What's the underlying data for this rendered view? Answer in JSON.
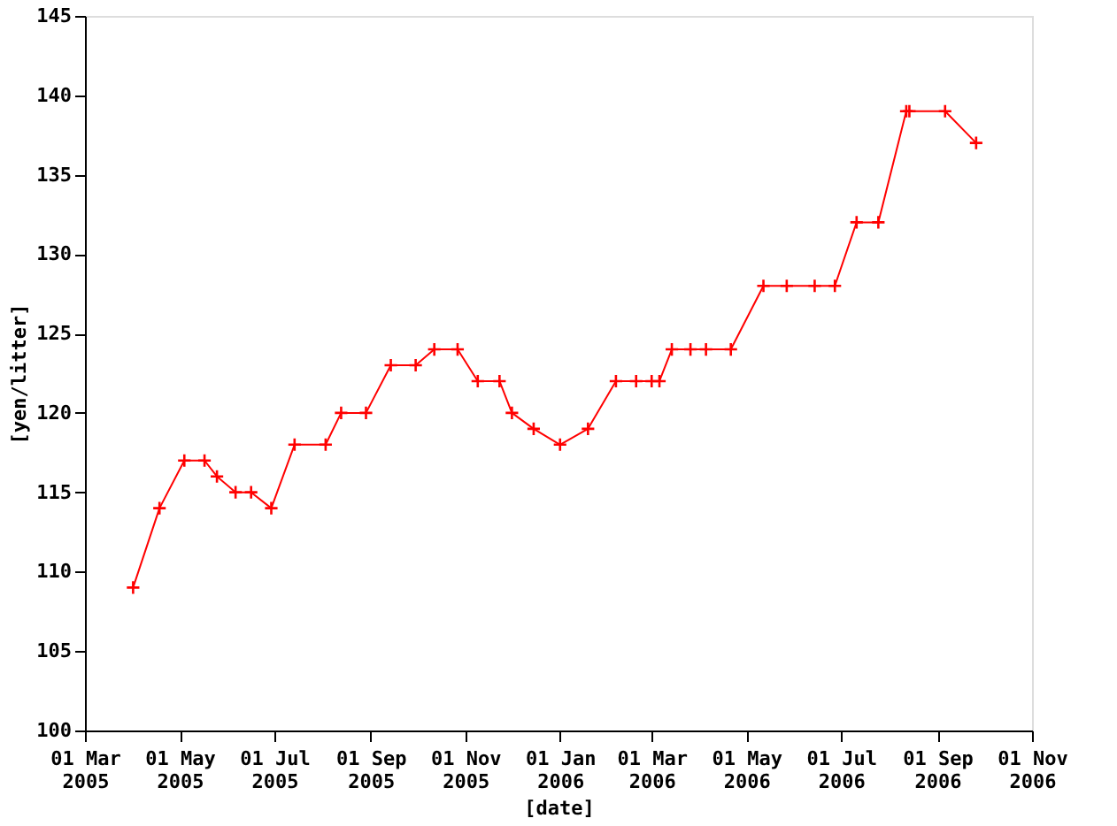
{
  "chart_data": {
    "type": "line",
    "xlabel": "[date]",
    "ylabel": "[yen/litter]",
    "x": [
      "2005-04-01",
      "2005-04-18",
      "2005-05-04",
      "2005-05-17",
      "2005-05-25",
      "2005-06-06",
      "2005-06-16",
      "2005-06-29",
      "2005-07-14",
      "2005-08-03",
      "2005-08-13",
      "2005-08-29",
      "2005-09-14",
      "2005-09-30",
      "2005-10-12",
      "2005-10-27",
      "2005-11-09",
      "2005-11-23",
      "2005-12-01",
      "2005-12-15",
      "2006-01-01",
      "2006-01-19",
      "2006-02-06",
      "2006-02-19",
      "2006-03-01",
      "2006-03-06",
      "2006-03-14",
      "2006-03-26",
      "2006-04-05",
      "2006-04-21",
      "2006-05-12",
      "2006-05-27",
      "2006-06-14",
      "2006-06-27",
      "2006-07-11",
      "2006-07-25",
      "2006-08-12",
      "2006-08-14",
      "2006-09-06",
      "2006-09-26"
    ],
    "series": [
      {
        "color": "#ff0000",
        "values": [
          109,
          114,
          117,
          117,
          116,
          115,
          115,
          114,
          118,
          118,
          120,
          120,
          123,
          123,
          124,
          124,
          122,
          122,
          120,
          119,
          118,
          119,
          122,
          122,
          122,
          122,
          124,
          124,
          124,
          124,
          128,
          128,
          128,
          128,
          132,
          132,
          139,
          139,
          139,
          137
        ]
      }
    ],
    "xlim": [
      "2005-03-01",
      "2006-11-01"
    ],
    "xticks": [
      {
        "value": "2005-03-01",
        "label": "01 Mar 2005"
      },
      {
        "value": "2005-05-01",
        "label": "01 May 2005"
      },
      {
        "value": "2005-07-01",
        "label": "01 Jul 2005"
      },
      {
        "value": "2005-09-01",
        "label": "01 Sep 2005"
      },
      {
        "value": "2005-11-01",
        "label": "01 Nov 2005"
      },
      {
        "value": "2006-01-01",
        "label": "01 Jan 2006"
      },
      {
        "value": "2006-03-01",
        "label": "01 Mar 2006"
      },
      {
        "value": "2006-05-01",
        "label": "01 May 2006"
      },
      {
        "value": "2006-07-01",
        "label": "01 Jul 2006"
      },
      {
        "value": "2006-09-01",
        "label": "01 Sep 2006"
      },
      {
        "value": "2006-11-01",
        "label": "01 Nov 2006"
      }
    ],
    "ylim": [
      100,
      145
    ],
    "yticks": [
      100,
      105,
      110,
      115,
      120,
      125,
      130,
      135,
      140,
      145
    ],
    "grid": false,
    "marker": "cross",
    "line_style": "solid"
  }
}
